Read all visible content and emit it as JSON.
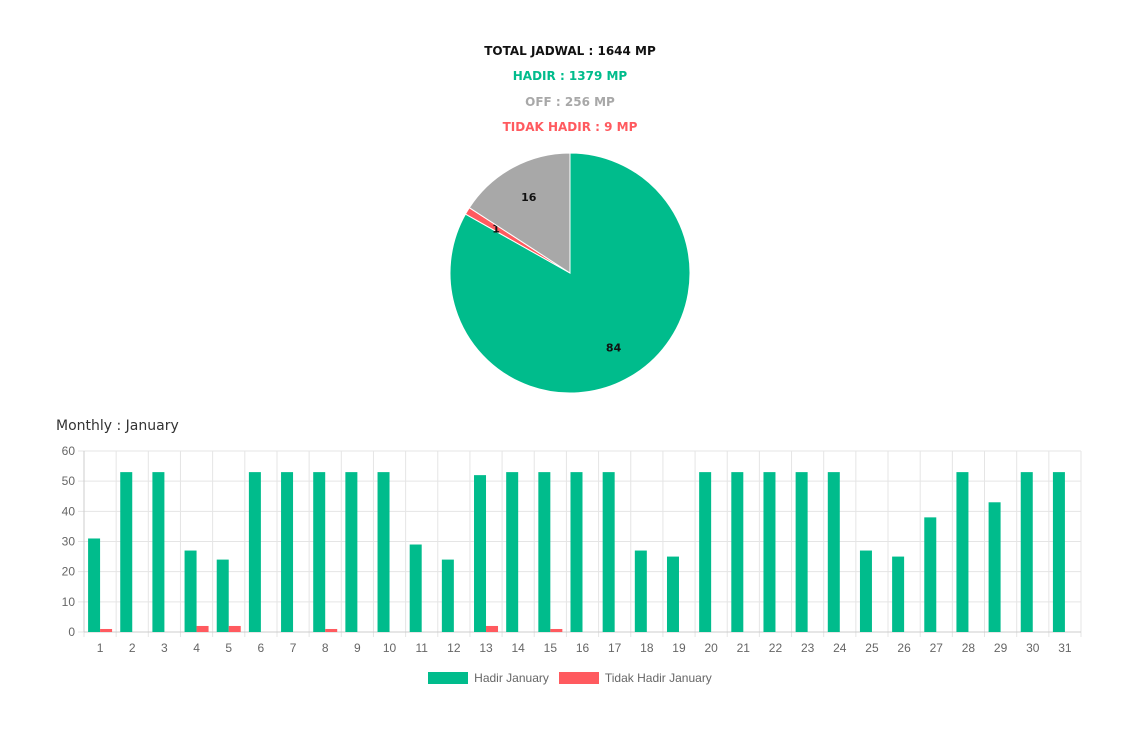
{
  "summary": {
    "total": "TOTAL JADWAL : 1644 MP",
    "hadir": "HADIR : 1379 MP",
    "off": "OFF : 256 MP",
    "tidak_hadir": "TIDAK HADIR : 9 MP"
  },
  "colors": {
    "hadir": "#00BC8C",
    "off": "#A8A8A8",
    "tidak_hadir": "#FF5A5F",
    "grid": "#E5E5E5",
    "axis_text": "#666666"
  },
  "monthly_title": "Monthly : January",
  "chart_data": [
    {
      "type": "pie",
      "labels": [
        "Hadir",
        "Tidak Hadir",
        "Off"
      ],
      "values": [
        84,
        1,
        16
      ],
      "data_labels": [
        "84",
        "1",
        "16"
      ],
      "slice_colors": [
        "#00BC8C",
        "#FF5A5F",
        "#A8A8A8"
      ]
    },
    {
      "type": "bar",
      "title": "Monthly : January",
      "categories": [
        "1",
        "2",
        "3",
        "4",
        "5",
        "6",
        "7",
        "8",
        "9",
        "10",
        "11",
        "12",
        "13",
        "14",
        "15",
        "16",
        "17",
        "18",
        "19",
        "20",
        "21",
        "22",
        "23",
        "24",
        "25",
        "26",
        "27",
        "28",
        "29",
        "30",
        "31"
      ],
      "series": [
        {
          "name": "Hadir January",
          "color": "#00BC8C",
          "values": [
            31,
            53,
            53,
            27,
            24,
            53,
            53,
            53,
            53,
            53,
            29,
            24,
            52,
            53,
            53,
            53,
            53,
            27,
            25,
            53,
            53,
            53,
            53,
            53,
            27,
            25,
            38,
            53,
            43,
            53,
            53
          ]
        },
        {
          "name": "Tidak Hadir January",
          "color": "#FF5A5F",
          "values": [
            1,
            0,
            0,
            2,
            2,
            0,
            0,
            1,
            0,
            0,
            0,
            0,
            2,
            0,
            1,
            0,
            0,
            0,
            0,
            0,
            0,
            0,
            0,
            0,
            0,
            0,
            0,
            0,
            0,
            0,
            0
          ]
        }
      ],
      "ylim": [
        0,
        60
      ],
      "yticks": [
        0,
        10,
        20,
        30,
        40,
        50,
        60
      ],
      "grid": true,
      "legend_position": "bottom"
    }
  ]
}
